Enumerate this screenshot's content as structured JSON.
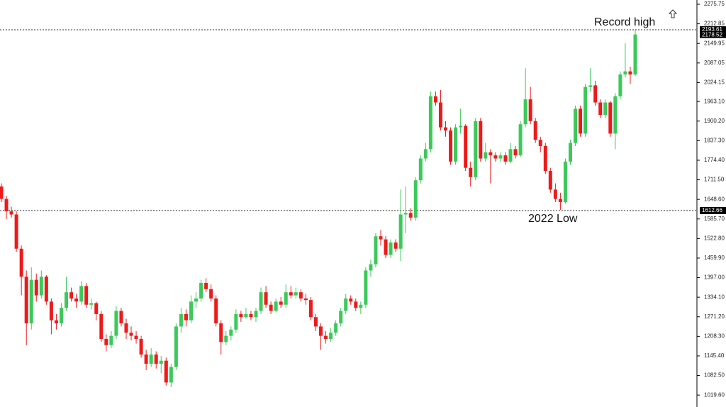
{
  "chart_data": {
    "type": "candlestick",
    "up_color": "#3cc95a",
    "down_color": "#ee1a1a",
    "ylim": [
      981.2,
      2289.4
    ],
    "yticks": [
      2275.75,
      2212.85,
      2149.95,
      2087.05,
      2024.15,
      {
        "value": 1963.1,
        "label": "1963.10"
      },
      {
        "value": 1900.2,
        "label": "1900.20"
      },
      {
        "value": 1837.3,
        "label": "1837.30"
      },
      {
        "value": 1774.4,
        "label": "1774.40"
      },
      {
        "value": 1711.5,
        "label": "1711.50"
      },
      {
        "value": 1648.6,
        "label": "1648.60"
      },
      {
        "value": 1585.7,
        "label": "1585.70"
      },
      {
        "value": 1522.8,
        "label": "1522.80"
      },
      {
        "value": 1459.9,
        "label": "1459.90"
      },
      {
        "value": 1397,
        "label": "1397.00"
      },
      {
        "value": 1334.1,
        "label": "1334.10"
      },
      {
        "value": 1271.2,
        "label": "1271.20"
      },
      {
        "value": 1208.3,
        "label": "1208.30"
      },
      {
        "value": 1145.4,
        "label": "1145.40"
      },
      {
        "value": 1082.5,
        "label": "1082.50"
      },
      {
        "value": 1019.6,
        "label": "1019.60"
      }
    ],
    "levels": [
      {
        "value": 2193.61,
        "label": "Record high"
      },
      {
        "value": 1612.66,
        "label": "2022 Low"
      }
    ],
    "last_price": 2178.52,
    "ohlc": [
      [
        1690,
        1700,
        1640,
        1650
      ],
      [
        1650,
        1660,
        1585,
        1610
      ],
      [
        1610,
        1625,
        1590,
        1600
      ],
      [
        1600,
        1610,
        1480,
        1490
      ],
      [
        1490,
        1500,
        1340,
        1400
      ],
      [
        1400,
        1420,
        1180,
        1250
      ],
      [
        1250,
        1430,
        1230,
        1390
      ],
      [
        1390,
        1410,
        1320,
        1340
      ],
      [
        1340,
        1420,
        1330,
        1400
      ],
      [
        1400,
        1405,
        1310,
        1320
      ],
      [
        1320,
        1330,
        1215,
        1260
      ],
      [
        1260,
        1280,
        1230,
        1250
      ],
      [
        1250,
        1315,
        1240,
        1300
      ],
      [
        1300,
        1400,
        1290,
        1350
      ],
      [
        1350,
        1365,
        1320,
        1330
      ],
      [
        1330,
        1345,
        1300,
        1320
      ],
      [
        1320,
        1385,
        1310,
        1370
      ],
      [
        1370,
        1380,
        1300,
        1310
      ],
      [
        1310,
        1330,
        1295,
        1315
      ],
      [
        1315,
        1320,
        1260,
        1280
      ],
      [
        1280,
        1290,
        1190,
        1200
      ],
      [
        1200,
        1215,
        1160,
        1180
      ],
      [
        1180,
        1225,
        1170,
        1210
      ],
      [
        1210,
        1305,
        1200,
        1290
      ],
      [
        1290,
        1300,
        1240,
        1250
      ],
      [
        1250,
        1265,
        1200,
        1220
      ],
      [
        1220,
        1240,
        1195,
        1210
      ],
      [
        1210,
        1225,
        1185,
        1200
      ],
      [
        1200,
        1210,
        1140,
        1150
      ],
      [
        1150,
        1165,
        1100,
        1120
      ],
      [
        1120,
        1170,
        1110,
        1150
      ],
      [
        1150,
        1160,
        1105,
        1120
      ],
      [
        1120,
        1145,
        1090,
        1130
      ],
      [
        1130,
        1140,
        1050,
        1060
      ],
      [
        1060,
        1120,
        1045,
        1110
      ],
      [
        1110,
        1250,
        1100,
        1240
      ],
      [
        1240,
        1300,
        1220,
        1280
      ],
      [
        1280,
        1295,
        1240,
        1260
      ],
      [
        1260,
        1340,
        1250,
        1320
      ],
      [
        1320,
        1350,
        1300,
        1330
      ],
      [
        1330,
        1390,
        1320,
        1380
      ],
      [
        1380,
        1395,
        1350,
        1360
      ],
      [
        1360,
        1375,
        1320,
        1330
      ],
      [
        1330,
        1340,
        1240,
        1250
      ],
      [
        1250,
        1260,
        1150,
        1190
      ],
      [
        1190,
        1225,
        1180,
        1210
      ],
      [
        1210,
        1240,
        1195,
        1230
      ],
      [
        1230,
        1295,
        1220,
        1280
      ],
      [
        1280,
        1290,
        1255,
        1270
      ],
      [
        1270,
        1300,
        1265,
        1280
      ],
      [
        1280,
        1290,
        1260,
        1270
      ],
      [
        1270,
        1300,
        1255,
        1290
      ],
      [
        1290,
        1365,
        1280,
        1350
      ],
      [
        1350,
        1370,
        1300,
        1310
      ],
      [
        1310,
        1320,
        1280,
        1290
      ],
      [
        1290,
        1330,
        1285,
        1320
      ],
      [
        1320,
        1335,
        1300,
        1310
      ],
      [
        1310,
        1375,
        1300,
        1350
      ],
      [
        1350,
        1370,
        1330,
        1340
      ],
      [
        1340,
        1365,
        1330,
        1350
      ],
      [
        1350,
        1360,
        1320,
        1330
      ],
      [
        1330,
        1345,
        1310,
        1325
      ],
      [
        1325,
        1335,
        1260,
        1270
      ],
      [
        1270,
        1280,
        1225,
        1240
      ],
      [
        1240,
        1250,
        1165,
        1210
      ],
      [
        1210,
        1225,
        1185,
        1200
      ],
      [
        1200,
        1235,
        1190,
        1220
      ],
      [
        1220,
        1260,
        1210,
        1250
      ],
      [
        1250,
        1300,
        1240,
        1290
      ],
      [
        1290,
        1345,
        1280,
        1330
      ],
      [
        1330,
        1340,
        1310,
        1320
      ],
      [
        1320,
        1330,
        1290,
        1300
      ],
      [
        1300,
        1320,
        1280,
        1310
      ],
      [
        1310,
        1430,
        1300,
        1420
      ],
      [
        1420,
        1455,
        1400,
        1440
      ],
      [
        1440,
        1540,
        1430,
        1530
      ],
      [
        1530,
        1550,
        1500,
        1520
      ],
      [
        1520,
        1530,
        1460,
        1470
      ],
      [
        1470,
        1520,
        1460,
        1510
      ],
      [
        1510,
        1520,
        1480,
        1490
      ],
      [
        1490,
        1680,
        1450,
        1600
      ],
      [
        1600,
        1690,
        1540,
        1605
      ],
      [
        1605,
        1620,
        1580,
        1590
      ],
      [
        1590,
        1720,
        1580,
        1710
      ],
      [
        1710,
        1790,
        1700,
        1780
      ],
      [
        1780,
        1830,
        1770,
        1810
      ],
      [
        1810,
        1995,
        1800,
        1980
      ],
      [
        1980,
        1995,
        1950,
        1960
      ],
      [
        1960,
        2000,
        1870,
        1880
      ],
      [
        1880,
        1900,
        1850,
        1870
      ],
      [
        1870,
        1880,
        1760,
        1770
      ],
      [
        1770,
        1890,
        1760,
        1880
      ],
      [
        1880,
        1940,
        1860,
        1885
      ],
      [
        1885,
        1890,
        1740,
        1750
      ],
      [
        1750,
        1770,
        1690,
        1720
      ],
      [
        1720,
        1910,
        1710,
        1900
      ],
      [
        1900,
        1910,
        1770,
        1780
      ],
      [
        1780,
        1830,
        1770,
        1800
      ],
      [
        1800,
        1810,
        1700,
        1790
      ],
      [
        1790,
        1800,
        1770,
        1780
      ],
      [
        1780,
        1800,
        1770,
        1790
      ],
      [
        1790,
        1800,
        1760,
        1770
      ],
      [
        1770,
        1830,
        1765,
        1810
      ],
      [
        1810,
        1820,
        1780,
        1790
      ],
      [
        1790,
        1900,
        1785,
        1890
      ],
      [
        1890,
        2070,
        1880,
        1970
      ],
      [
        1970,
        2010,
        1890,
        1900
      ],
      [
        1900,
        1910,
        1830,
        1840
      ],
      [
        1840,
        1850,
        1800,
        1820
      ],
      [
        1820,
        1830,
        1730,
        1740
      ],
      [
        1740,
        1750,
        1670,
        1680
      ],
      [
        1680,
        1700,
        1640,
        1650
      ],
      [
        1650,
        1670,
        1615,
        1640
      ],
      [
        1640,
        1780,
        1635,
        1770
      ],
      [
        1770,
        1840,
        1760,
        1830
      ],
      [
        1830,
        1950,
        1820,
        1940
      ],
      [
        1940,
        1950,
        1850,
        1860
      ],
      [
        1860,
        2020,
        1850,
        2010
      ],
      [
        2010,
        2070,
        1995,
        2015
      ],
      [
        2015,
        2030,
        1950,
        1960
      ],
      [
        1960,
        1970,
        1910,
        1920
      ],
      [
        1920,
        1970,
        1910,
        1960
      ],
      [
        1960,
        1965,
        1850,
        1860
      ],
      [
        1860,
        1990,
        1810,
        1980
      ],
      [
        1980,
        2060,
        1970,
        2050
      ],
      [
        2050,
        2150,
        2040,
        2060
      ],
      [
        2060,
        2075,
        2020,
        2050
      ],
      [
        2050,
        2193.61,
        2045,
        2178.52
      ]
    ]
  }
}
